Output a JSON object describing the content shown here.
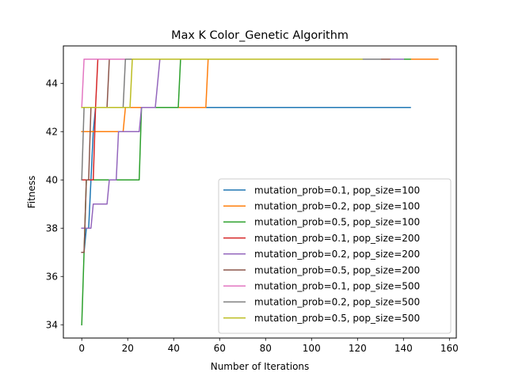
{
  "chart_data": {
    "type": "line",
    "title": "Max K Color_Genetic Algorithm",
    "xlabel": "Number of Iterations",
    "ylabel": "Fitness",
    "xlim": [
      -8,
      163
    ],
    "ylim": [
      33.45,
      45.55
    ],
    "xticks": [
      0,
      20,
      40,
      60,
      80,
      100,
      120,
      140,
      160
    ],
    "yticks": [
      34,
      36,
      38,
      40,
      42,
      44
    ],
    "grid": false,
    "legend_position": "lower-right",
    "series": [
      {
        "name": "mutation_prob=0.1, pop_size=100",
        "color": "#1f77b4",
        "x": [
          0,
          1,
          2,
          3,
          4,
          5,
          6,
          143
        ],
        "y": [
          37,
          37,
          38,
          38,
          40,
          42,
          43,
          43
        ]
      },
      {
        "name": "mutation_prob=0.2, pop_size=100",
        "color": "#ff7f0e",
        "x": [
          0,
          18,
          19,
          54,
          55,
          155
        ],
        "y": [
          42,
          42,
          43,
          43,
          45,
          45
        ]
      },
      {
        "name": "mutation_prob=0.5, pop_size=100",
        "color": "#2ca02c",
        "x": [
          0,
          1,
          2,
          25,
          26,
          42,
          43,
          143
        ],
        "y": [
          34,
          37,
          40,
          40,
          43,
          43,
          45,
          45
        ]
      },
      {
        "name": "mutation_prob=0.1, pop_size=200",
        "color": "#d62728",
        "x": [
          0,
          5,
          6,
          7,
          120
        ],
        "y": [
          40,
          40,
          43,
          45,
          45
        ]
      },
      {
        "name": "mutation_prob=0.2, pop_size=200",
        "color": "#9467bd",
        "x": [
          0,
          3,
          4,
          5,
          11,
          12,
          15,
          16,
          25,
          26,
          32,
          34,
          140
        ],
        "y": [
          38,
          38,
          38,
          39,
          39,
          40,
          40,
          42,
          42,
          43,
          43,
          45,
          45
        ]
      },
      {
        "name": "mutation_prob=0.5, pop_size=200",
        "color": "#8c564b",
        "x": [
          0,
          1,
          2,
          3,
          4,
          5,
          11,
          12,
          134
        ],
        "y": [
          37,
          37,
          40,
          40,
          43,
          43,
          43,
          45,
          45
        ]
      },
      {
        "name": "mutation_prob=0.1, pop_size=500",
        "color": "#e377c2",
        "x": [
          0,
          1,
          130
        ],
        "y": [
          43,
          45,
          45
        ]
      },
      {
        "name": "mutation_prob=0.2, pop_size=500",
        "color": "#7f7f7f",
        "x": [
          0,
          1,
          2,
          18,
          19,
          130
        ],
        "y": [
          40,
          43,
          43,
          43,
          45,
          45
        ]
      },
      {
        "name": "mutation_prob=0.5, pop_size=500",
        "color": "#bcbd22",
        "x": [
          0,
          21,
          22,
          122
        ],
        "y": [
          43,
          43,
          45,
          45
        ]
      }
    ]
  }
}
